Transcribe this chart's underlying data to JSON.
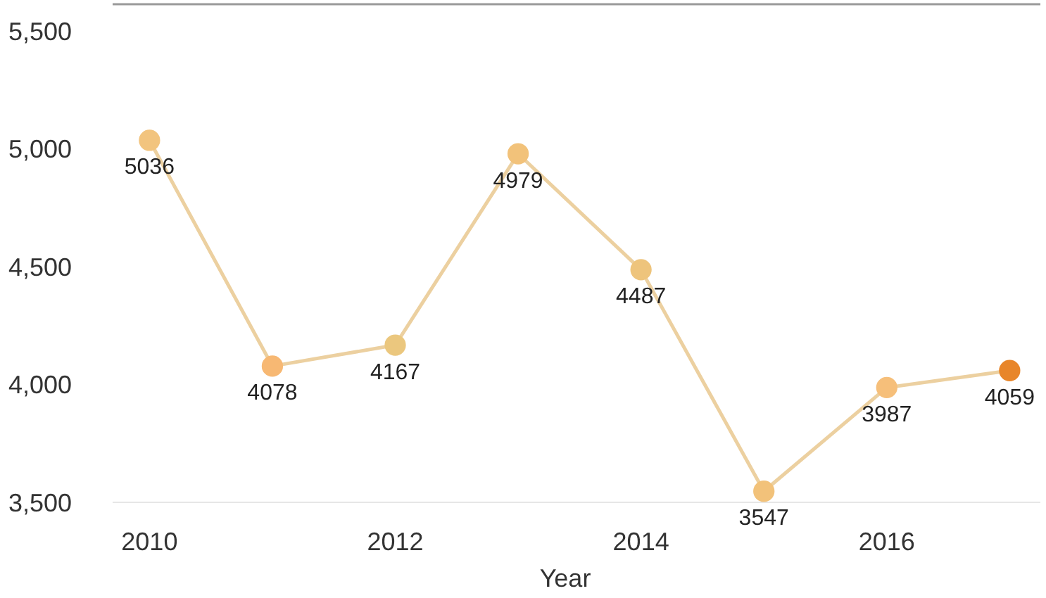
{
  "chart_data": {
    "type": "line",
    "xlabel": "Year",
    "x": [
      2010,
      2011,
      2012,
      2013,
      2014,
      2015,
      2016,
      2017
    ],
    "series": [
      {
        "color": "#ecd0a0",
        "colors": [
          "#f2c47e",
          "#f7b873",
          "#ebc77e",
          "#f2c27a",
          "#eec47c",
          "#f2c27a",
          "#f6bf7a",
          "#e8862a"
        ],
        "values": [
          5036,
          4078,
          4167,
          4979,
          4487,
          3547,
          3987,
          4059
        ]
      }
    ],
    "xlim": [
      2009.7,
      2017.25
    ],
    "xticks": [
      2010,
      2012,
      2014,
      2016
    ],
    "ylim": [
      3500,
      5500
    ],
    "yticks": [
      {
        "value": 3500,
        "label": "3,500"
      },
      {
        "value": 4000,
        "label": "4,000"
      },
      {
        "value": 4500,
        "label": "4,500"
      },
      {
        "value": 5000,
        "label": "5,000"
      },
      {
        "value": 5500,
        "label": "5,500"
      }
    ],
    "data_labels": true,
    "marker": "circle"
  }
}
